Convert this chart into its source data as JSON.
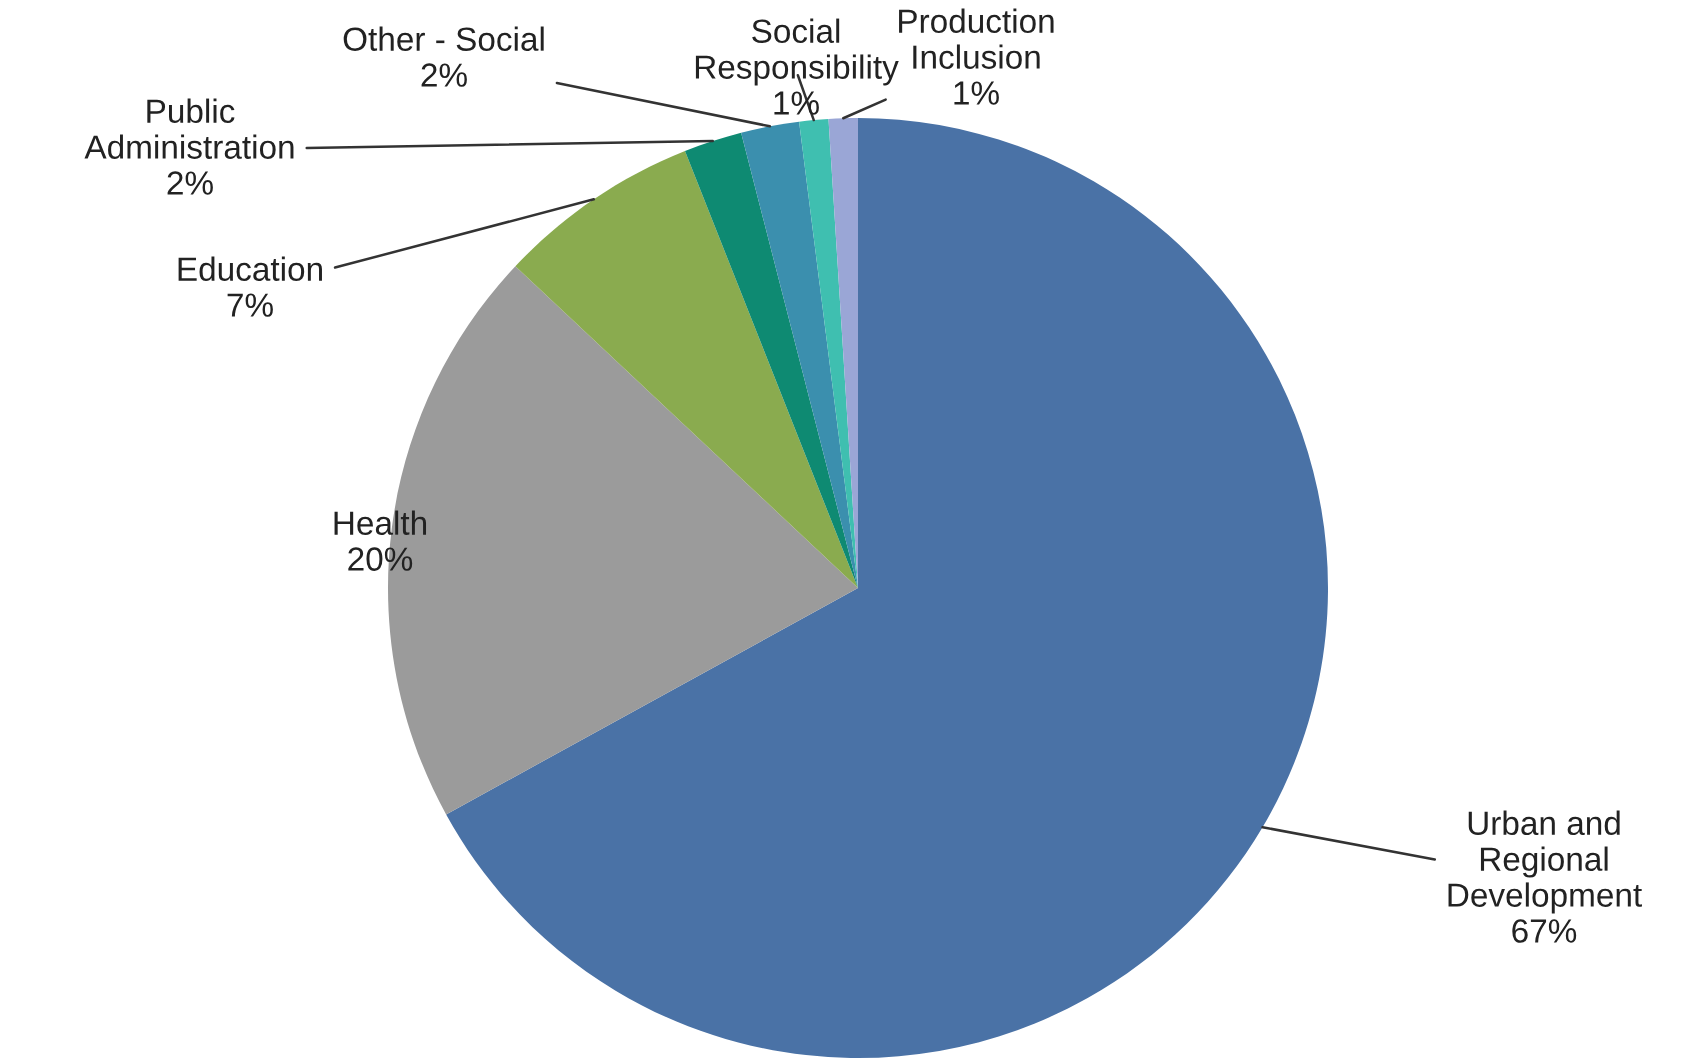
{
  "chart_data": {
    "type": "pie",
    "categories": [
      "Urban and\nRegional\nDevelopment",
      "Health",
      "Education",
      "Public\nAdministration",
      "Other - Social",
      "Social\nResponsibility",
      "Production\nInclusion"
    ],
    "values": [
      67,
      20,
      7,
      2,
      2,
      1,
      1
    ],
    "value_labels": [
      "67%",
      "20%",
      "7%",
      "2%",
      "2%",
      "1%",
      "1%"
    ],
    "colors": [
      "#4a72a6",
      "#9b9b9b",
      "#8aab4f",
      "#0e8a72",
      "#3b8fae",
      "#3fbfb0",
      "#9aa6d6"
    ]
  }
}
